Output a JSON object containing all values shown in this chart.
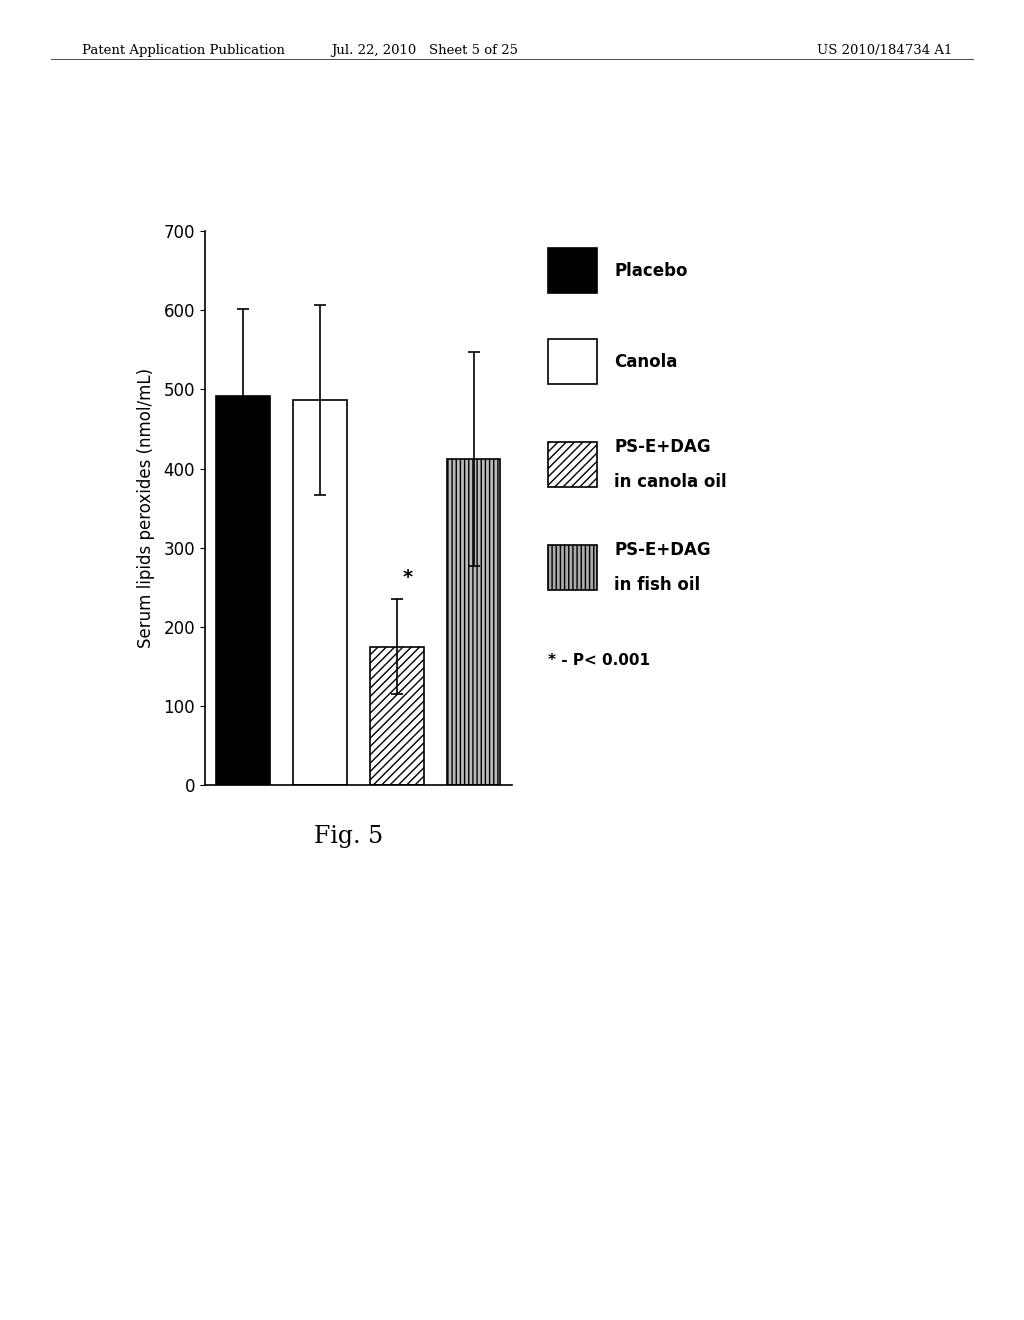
{
  "values": [
    492,
    487,
    175,
    412
  ],
  "errors": [
    110,
    120,
    60,
    135
  ],
  "ylabel": "Serum lipids peroxides (nmol/mL)",
  "ylim": [
    0,
    700
  ],
  "yticks": [
    0,
    100,
    200,
    300,
    400,
    500,
    600,
    700
  ],
  "footnote": "* - P< 0.001",
  "figure_caption": "Fig. 5",
  "header_left": "Patent Application Publication",
  "header_center": "Jul. 22, 2010   Sheet 5 of 25",
  "header_right": "US 2010/184734 A1",
  "background_color": "#ffffff",
  "axis_fontsize": 12,
  "tick_fontsize": 12,
  "legend_fontsize": 12,
  "legend_items": [
    {
      "label1": "Placebo",
      "label2": "",
      "facecolor": "black",
      "hatch": ""
    },
    {
      "label1": "Canola",
      "label2": "",
      "facecolor": "white",
      "hatch": ""
    },
    {
      "label1": "PS-E+DAG",
      "label2": "in canola oil",
      "facecolor": "white",
      "hatch": "////"
    },
    {
      "label1": "PS-E+DAG",
      "label2": "in fish oil",
      "facecolor": "#aaaaaa",
      "hatch": "||||"
    }
  ]
}
